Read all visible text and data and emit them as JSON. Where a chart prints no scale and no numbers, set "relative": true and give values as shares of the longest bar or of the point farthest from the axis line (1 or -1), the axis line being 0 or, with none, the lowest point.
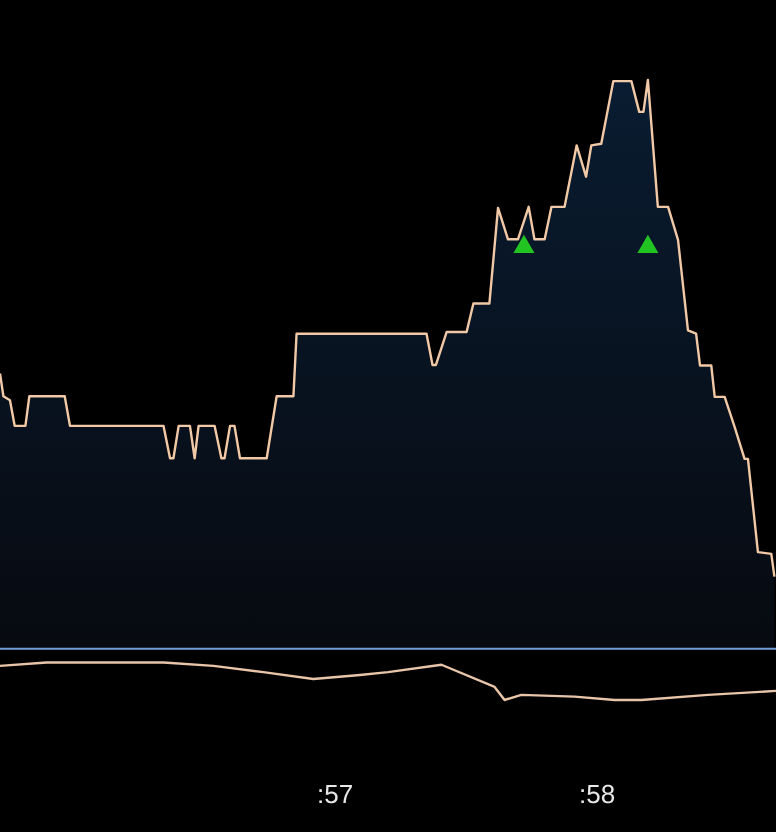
{
  "chart_data": {
    "type": "area",
    "relative": true,
    "xlim": [
      55.725,
      58.687
    ],
    "xticks": [
      {
        "value": 57,
        "label": ":57"
      },
      {
        "value": 58,
        "label": ":58"
      }
    ],
    "ref_lines": [
      {
        "axis": "y",
        "value": 0,
        "color": "#6f9fd8"
      }
    ],
    "series": [
      {
        "color": "#f2c9a6",
        "x": [
          55.725,
          55.738,
          55.763,
          55.781,
          55.822,
          55.837,
          55.972,
          55.992,
          56.349,
          56.374,
          56.387,
          56.407,
          56.45,
          56.468,
          56.483,
          56.544,
          56.57,
          56.582,
          56.603,
          56.62,
          56.641,
          56.743,
          56.781,
          56.845,
          56.857,
          57.353,
          57.376,
          57.389,
          57.43,
          57.506,
          57.532,
          57.593,
          57.626,
          57.664,
          57.702,
          57.743,
          57.765,
          57.804,
          57.83,
          57.88,
          57.926,
          57.962,
          57.982,
          58.02,
          58.066,
          58.135,
          58.165,
          58.181,
          58.198,
          58.236,
          58.275,
          58.313,
          58.351,
          58.382,
          58.397,
          58.44,
          58.453,
          58.491,
          58.529,
          58.567,
          58.58,
          58.618,
          58.669,
          58.681
        ],
        "values": [
          0.484,
          0.444,
          0.437,
          0.392,
          0.392,
          0.444,
          0.444,
          0.392,
          0.392,
          0.335,
          0.335,
          0.392,
          0.392,
          0.335,
          0.392,
          0.392,
          0.335,
          0.335,
          0.392,
          0.392,
          0.335,
          0.335,
          0.444,
          0.444,
          0.554,
          0.554,
          0.499,
          0.499,
          0.557,
          0.557,
          0.607,
          0.607,
          0.775,
          0.72,
          0.72,
          0.777,
          0.72,
          0.72,
          0.777,
          0.777,
          0.885,
          0.83,
          0.885,
          0.888,
          0.998,
          0.998,
          0.944,
          0.944,
          1,
          0.777,
          0.777,
          0.719,
          0.56,
          0.554,
          0.498,
          0.498,
          0.443,
          0.443,
          0.39,
          0.334,
          0.334,
          0.17,
          0.167,
          0.127
        ]
      },
      {
        "type": "line",
        "color": "#e8c4a8",
        "x": [
          55.725,
          55.903,
          56.349,
          56.54,
          56.73,
          56.921,
          57.099,
          57.206,
          57.41,
          57.613,
          57.651,
          57.715,
          57.918,
          58.071,
          58.173,
          58.427,
          58.687
        ],
        "values": [
          -0.03,
          -0.024,
          -0.024,
          -0.03,
          -0.041,
          -0.053,
          -0.046,
          -0.041,
          -0.028,
          -0.067,
          -0.09,
          -0.081,
          -0.084,
          -0.09,
          -0.09,
          -0.081,
          -0.074
        ]
      },
      {
        "type": "scatter",
        "marker": "triangle",
        "color": "#22c422",
        "x": [
          57.725,
          58.198
        ],
        "values": [
          0.712,
          0.712
        ]
      }
    ]
  }
}
